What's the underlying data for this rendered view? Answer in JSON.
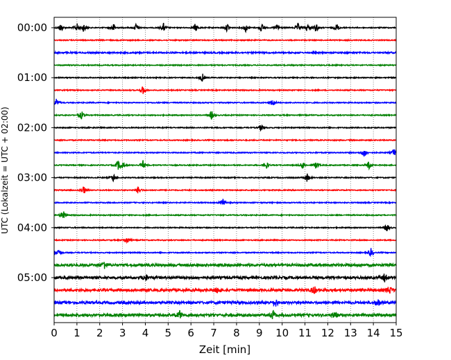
{
  "chart_data": {
    "type": "line",
    "title": "",
    "xlabel": "Zeit  [min]",
    "ylabel": "UTC (Lokalzeit = UTC + 02:00)",
    "xlim": [
      0,
      15
    ],
    "xticks": [
      "0",
      "1",
      "2",
      "3",
      "4",
      "5",
      "6",
      "7",
      "8",
      "9",
      "10",
      "11",
      "12",
      "13",
      "14",
      "15"
    ],
    "y_tick_labels": [
      "00:00",
      "01:00",
      "02:00",
      "03:00",
      "04:00",
      "05:00"
    ],
    "grid": "vertical dotted lines at each minute",
    "trace_interval_minutes": 15,
    "color_cycle": [
      "#000000",
      "#ff0000",
      "#0000ff",
      "#008000"
    ],
    "traces": [
      {
        "start": "00:00",
        "color": "#000000",
        "events_min": [
          0.3,
          1.0,
          1.3,
          2.6,
          3.6,
          4.8,
          6.2,
          7.6,
          8.4,
          9.1,
          9.8,
          10.7,
          11.1,
          11.5,
          12.4
        ]
      },
      {
        "start": "00:15",
        "color": "#ff0000",
        "events_min": []
      },
      {
        "start": "00:30",
        "color": "#0000ff",
        "events_min": []
      },
      {
        "start": "00:45",
        "color": "#008000",
        "events_min": []
      },
      {
        "start": "01:00",
        "color": "#000000",
        "events_min": [
          6.5
        ]
      },
      {
        "start": "01:15",
        "color": "#ff0000",
        "events_min": [
          3.9
        ]
      },
      {
        "start": "01:30",
        "color": "#0000ff",
        "events_min": [
          0.1,
          9.6
        ]
      },
      {
        "start": "01:45",
        "color": "#008000",
        "events_min": [
          1.2,
          6.9
        ]
      },
      {
        "start": "02:00",
        "color": "#000000",
        "events_min": [
          9.1
        ]
      },
      {
        "start": "02:15",
        "color": "#ff0000",
        "events_min": []
      },
      {
        "start": "02:30",
        "color": "#0000ff",
        "events_min": [
          13.6,
          14.9
        ]
      },
      {
        "start": "02:45",
        "color": "#008000",
        "events_min": [
          2.8,
          3.0,
          3.9,
          9.3,
          10.9,
          11.5,
          13.8
        ]
      },
      {
        "start": "03:00",
        "color": "#000000",
        "events_min": [
          2.6,
          11.1
        ]
      },
      {
        "start": "03:15",
        "color": "#ff0000",
        "events_min": [
          1.3,
          3.7
        ]
      },
      {
        "start": "03:30",
        "color": "#0000ff",
        "events_min": [
          7.4
        ]
      },
      {
        "start": "03:45",
        "color": "#008000",
        "events_min": [
          0.4
        ]
      },
      {
        "start": "04:00",
        "color": "#000000",
        "events_min": [
          14.6
        ]
      },
      {
        "start": "04:15",
        "color": "#ff0000",
        "events_min": [
          3.2
        ]
      },
      {
        "start": "04:30",
        "color": "#0000ff",
        "events_min": [
          0.2,
          13.9
        ]
      },
      {
        "start": "04:45",
        "color": "#008000",
        "events_min": [
          2.2
        ]
      },
      {
        "start": "05:00",
        "color": "#000000",
        "events_min": [
          4.0,
          14.5
        ]
      },
      {
        "start": "05:15",
        "color": "#ff0000",
        "events_min": [
          7.2,
          11.4,
          14.7
        ]
      },
      {
        "start": "05:30",
        "color": "#0000ff",
        "events_min": [
          9.7,
          14.2
        ]
      },
      {
        "start": "05:45",
        "color": "#008000",
        "events_min": [
          5.5,
          9.6,
          12.3
        ]
      }
    ]
  }
}
